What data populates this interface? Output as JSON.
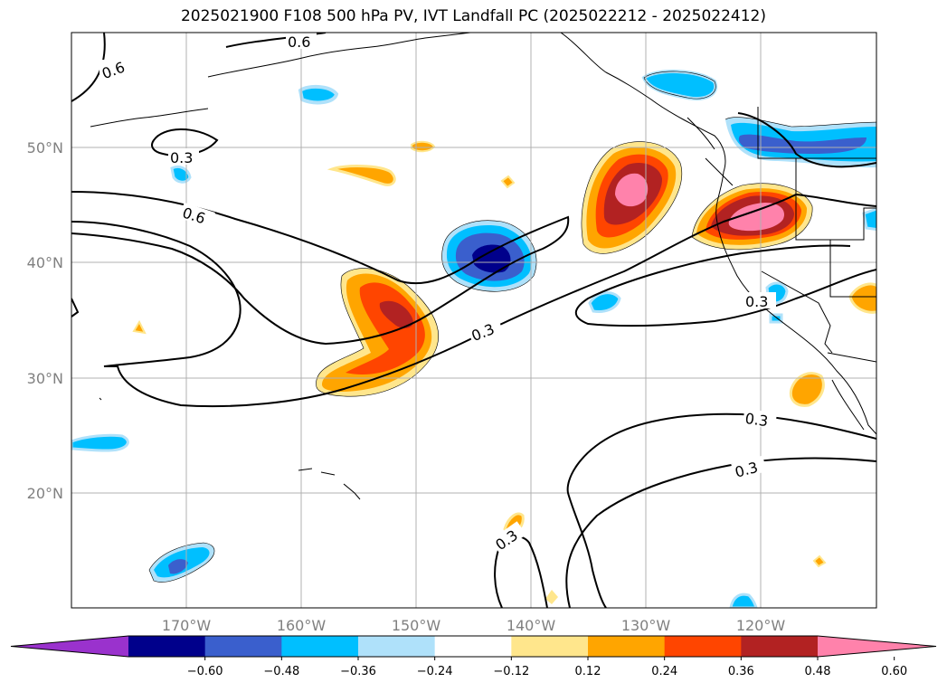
{
  "title": "2025021900 F108 500 hPa PV, IVT Landfall PC (2025022212 - 2025022412)",
  "axes": {
    "lon_labels": [
      "170°W",
      "160°W",
      "150°W",
      "140°W",
      "130°W",
      "120°W"
    ],
    "lat_labels": [
      "50°N",
      "40°N",
      "30°N",
      "20°N"
    ]
  },
  "contour_labels": [
    "0.6",
    "0.6",
    "0.3",
    "0.6",
    "0.3",
    "0.3",
    "0.3",
    "0.3",
    "0.3"
  ],
  "colorbar": {
    "ticks": [
      "−0.60",
      "−0.48",
      "−0.36",
      "−0.24",
      "−0.12",
      "0.12",
      "0.24",
      "0.36",
      "0.48",
      "0.60"
    ],
    "colors": [
      "#9a32cd",
      "#00008b",
      "#3a5fcd",
      "#00bfff",
      "#afe1fa",
      "#ffffff",
      "#ffe68c",
      "#ffa500",
      "#ff4500",
      "#b22222",
      "#ff82ab"
    ]
  },
  "chart_data": {
    "type": "heatmap",
    "title": "2025021900 F108 500 hPa PV, IVT Landfall PC (2025022212 - 2025022412)",
    "x_ticks": [
      "170°W",
      "160°W",
      "150°W",
      "140°W",
      "130°W",
      "120°W"
    ],
    "y_ticks": [
      "50°N",
      "40°N",
      "30°N",
      "20°N"
    ],
    "xlim": [
      -180,
      -110
    ],
    "ylim": [
      10,
      60
    ],
    "grid": true,
    "colorbar_levels": [
      -0.6,
      -0.48,
      -0.36,
      -0.24,
      -0.12,
      0.12,
      0.24,
      0.36,
      0.48,
      0.6
    ],
    "contour_levels": [
      0.3,
      0.6
    ]
  }
}
